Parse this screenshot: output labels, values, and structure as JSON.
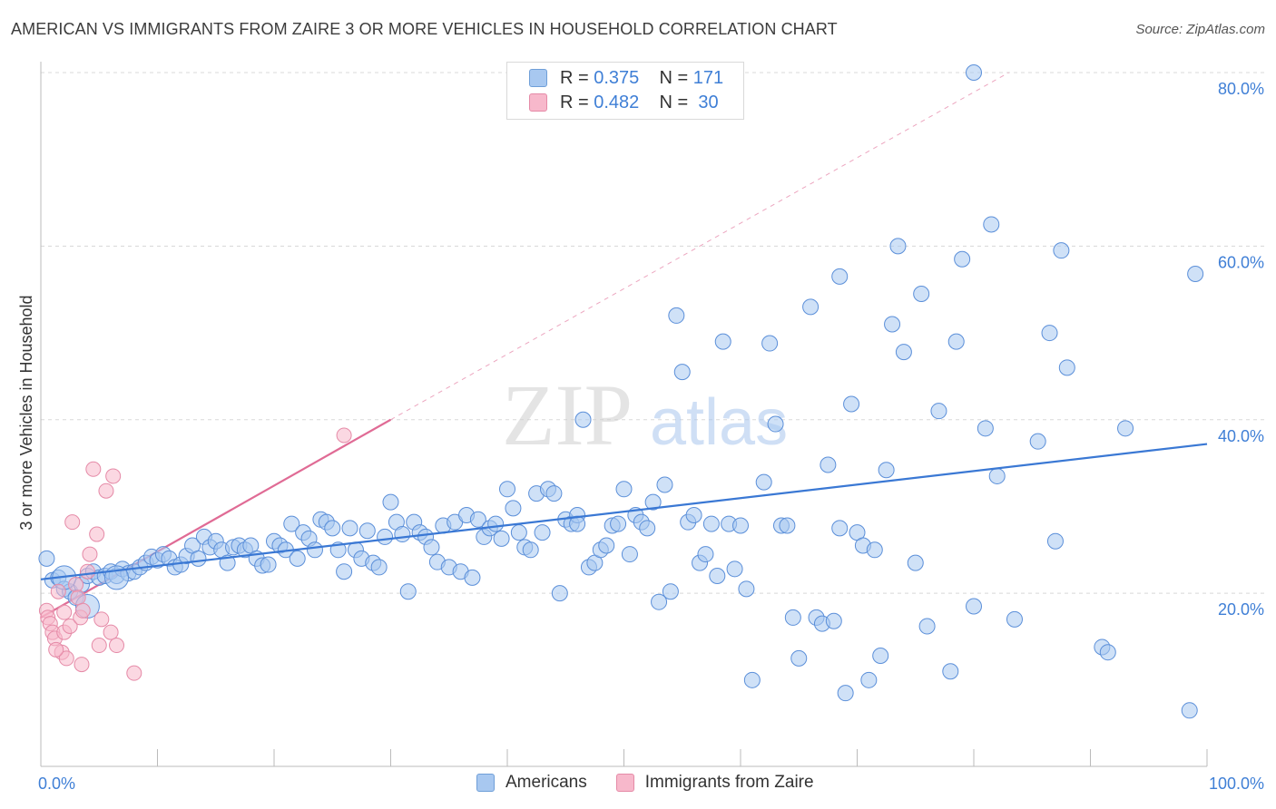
{
  "title": "AMERICAN VS IMMIGRANTS FROM ZAIRE 3 OR MORE VEHICLES IN HOUSEHOLD CORRELATION CHART",
  "source": "Source: ZipAtlas.com",
  "watermark": {
    "zip": "ZIP",
    "atlas": "atlas"
  },
  "legend": {
    "rows": [
      {
        "r_label": "R =",
        "r_value": "0.375",
        "n_label": "N =",
        "n_value": "171",
        "color": "#a8c8f0",
        "border": "#6f9fd8"
      },
      {
        "r_label": "R =",
        "r_value": "0.482",
        "n_label": "N =",
        "n_value": "30",
        "color": "#f7b8cb",
        "border": "#e58aa7"
      }
    ]
  },
  "bottom_legend": {
    "americans": "Americans",
    "zaire": "Immigrants from Zaire"
  },
  "colors": {
    "blue": "#5b8fd9",
    "blue_fill": "#a8c8f0",
    "pink": "#e06b95",
    "pink_fill": "#f7b8cb",
    "grid": "#d8d8d8",
    "axis_text": "#3f7fd6"
  },
  "chart_data": {
    "type": "scatter",
    "title": "AMERICAN VS IMMIGRANTS FROM ZAIRE 3 OR MORE VEHICLES IN HOUSEHOLD CORRELATION CHART",
    "xlabel": "",
    "ylabel": "3 or more Vehicles in Household",
    "xlim": [
      0,
      100
    ],
    "ylim": [
      0,
      82
    ],
    "x_tick_labels": [
      "0.0%",
      "100.0%"
    ],
    "y_ticks": [
      20,
      40,
      60,
      80
    ],
    "y_tick_labels": [
      "20.0%",
      "40.0%",
      "60.0%",
      "80.0%"
    ],
    "grid": true,
    "legend_position": "top-center",
    "series": [
      {
        "name": "Americans",
        "r": 0.375,
        "n": 171,
        "trend": {
          "x": [
            0,
            100
          ],
          "y": [
            21.6,
            37.2
          ]
        },
        "points": [
          [
            0.5,
            24.0
          ],
          [
            1.0,
            21.5
          ],
          [
            1.5,
            21.8
          ],
          [
            2.0,
            20.5
          ],
          [
            2.5,
            20.2
          ],
          [
            3.0,
            19.5
          ],
          [
            3.5,
            21.0
          ],
          [
            4.0,
            22.0
          ],
          [
            4.5,
            22.5
          ],
          [
            5.0,
            21.8
          ],
          [
            5.5,
            22.0
          ],
          [
            6.0,
            22.5
          ],
          [
            6.5,
            22.0
          ],
          [
            7.0,
            22.8
          ],
          [
            7.5,
            22.3
          ],
          [
            8.0,
            22.5
          ],
          [
            8.5,
            23.0
          ],
          [
            9.0,
            23.5
          ],
          [
            9.5,
            24.2
          ],
          [
            10.0,
            23.8
          ],
          [
            10.5,
            24.5
          ],
          [
            11.0,
            24.0
          ],
          [
            11.5,
            23.0
          ],
          [
            12.0,
            23.3
          ],
          [
            12.5,
            24.3
          ],
          [
            13.0,
            25.5
          ],
          [
            13.5,
            24.0
          ],
          [
            14.0,
            26.5
          ],
          [
            14.5,
            25.3
          ],
          [
            15.0,
            26.0
          ],
          [
            15.5,
            25.0
          ],
          [
            16.0,
            23.5
          ],
          [
            16.5,
            25.3
          ],
          [
            17.0,
            25.5
          ],
          [
            17.5,
            25.0
          ],
          [
            18.0,
            25.5
          ],
          [
            18.5,
            24.0
          ],
          [
            19.0,
            23.2
          ],
          [
            19.5,
            23.3
          ],
          [
            20.0,
            26.0
          ],
          [
            20.5,
            25.5
          ],
          [
            21.0,
            25.0
          ],
          [
            21.5,
            28.0
          ],
          [
            22.0,
            24.0
          ],
          [
            22.5,
            27.0
          ],
          [
            23.0,
            26.3
          ],
          [
            23.5,
            25.0
          ],
          [
            24.0,
            28.5
          ],
          [
            24.5,
            28.2
          ],
          [
            25.0,
            27.5
          ],
          [
            25.5,
            25.0
          ],
          [
            26.0,
            22.5
          ],
          [
            26.5,
            27.5
          ],
          [
            27.0,
            25.0
          ],
          [
            27.5,
            24.0
          ],
          [
            28.0,
            27.2
          ],
          [
            28.5,
            23.5
          ],
          [
            29.0,
            23.0
          ],
          [
            29.5,
            26.5
          ],
          [
            30.0,
            30.5
          ],
          [
            30.5,
            28.2
          ],
          [
            31.0,
            26.8
          ],
          [
            31.5,
            20.2
          ],
          [
            32.0,
            28.2
          ],
          [
            32.5,
            27.0
          ],
          [
            33.0,
            26.5
          ],
          [
            33.5,
            25.3
          ],
          [
            34.0,
            23.6
          ],
          [
            34.5,
            27.8
          ],
          [
            35.0,
            23.0
          ],
          [
            35.5,
            28.2
          ],
          [
            36.0,
            22.5
          ],
          [
            36.5,
            29.0
          ],
          [
            37.0,
            21.8
          ],
          [
            37.5,
            28.5
          ],
          [
            38.0,
            26.5
          ],
          [
            38.5,
            27.5
          ],
          [
            39.0,
            28.0
          ],
          [
            39.5,
            26.3
          ],
          [
            40.0,
            32.0
          ],
          [
            40.5,
            29.8
          ],
          [
            41.0,
            27.0
          ],
          [
            41.5,
            25.3
          ],
          [
            42.0,
            25.0
          ],
          [
            42.5,
            31.5
          ],
          [
            43.0,
            27.0
          ],
          [
            43.5,
            32.0
          ],
          [
            44.0,
            31.5
          ],
          [
            44.5,
            20.0
          ],
          [
            45.0,
            28.5
          ],
          [
            45.5,
            28.0
          ],
          [
            46.0,
            29.0
          ],
          [
            46.5,
            40.0
          ],
          [
            47.0,
            23.0
          ],
          [
            47.5,
            23.5
          ],
          [
            48.0,
            25.0
          ],
          [
            48.5,
            25.5
          ],
          [
            49.0,
            27.8
          ],
          [
            49.5,
            28.0
          ],
          [
            50.0,
            32.0
          ],
          [
            50.5,
            24.5
          ],
          [
            51.0,
            29.0
          ],
          [
            51.5,
            28.2
          ],
          [
            52.0,
            27.5
          ],
          [
            52.5,
            30.5
          ],
          [
            53.0,
            19.0
          ],
          [
            53.5,
            32.5
          ],
          [
            54.0,
            20.2
          ],
          [
            54.5,
            52.0
          ],
          [
            55.0,
            45.5
          ],
          [
            55.5,
            28.2
          ],
          [
            56.0,
            29.0
          ],
          [
            56.5,
            23.5
          ],
          [
            57.0,
            24.5
          ],
          [
            57.5,
            28.0
          ],
          [
            58.0,
            22.0
          ],
          [
            58.5,
            49.0
          ],
          [
            59.0,
            28.0
          ],
          [
            59.5,
            22.8
          ],
          [
            60.0,
            27.8
          ],
          [
            60.5,
            20.5
          ],
          [
            61.0,
            10.0
          ],
          [
            62.0,
            32.8
          ],
          [
            62.5,
            48.8
          ],
          [
            63.0,
            39.5
          ],
          [
            63.5,
            27.8
          ],
          [
            64.0,
            27.8
          ],
          [
            64.5,
            17.2
          ],
          [
            65.0,
            12.5
          ],
          [
            66.0,
            53.0
          ],
          [
            66.5,
            17.2
          ],
          [
            67.0,
            16.5
          ],
          [
            67.5,
            34.8
          ],
          [
            68.0,
            16.8
          ],
          [
            68.5,
            56.5
          ],
          [
            69.0,
            8.5
          ],
          [
            69.5,
            41.8
          ],
          [
            70.0,
            27.0
          ],
          [
            70.5,
            25.5
          ],
          [
            71.0,
            10.0
          ],
          [
            71.5,
            25.0
          ],
          [
            72.0,
            12.8
          ],
          [
            72.5,
            34.2
          ],
          [
            73.0,
            51.0
          ],
          [
            73.5,
            60.0
          ],
          [
            74.0,
            47.8
          ],
          [
            75.0,
            23.5
          ],
          [
            75.5,
            54.5
          ],
          [
            76.0,
            16.2
          ],
          [
            77.0,
            41.0
          ],
          [
            78.0,
            11.0
          ],
          [
            78.5,
            49.0
          ],
          [
            79.0,
            58.5
          ],
          [
            80.0,
            18.5
          ],
          [
            81.0,
            39.0
          ],
          [
            81.5,
            62.5
          ],
          [
            82.0,
            33.5
          ],
          [
            83.5,
            17.0
          ],
          [
            85.5,
            37.5
          ],
          [
            86.5,
            50.0
          ],
          [
            87.0,
            26.0
          ],
          [
            87.5,
            59.5
          ],
          [
            88.0,
            46.0
          ],
          [
            91.0,
            13.8
          ],
          [
            91.5,
            13.2
          ],
          [
            93.0,
            39.0
          ],
          [
            98.5,
            6.5
          ],
          [
            99.0,
            56.8
          ],
          [
            80.0,
            80.0
          ],
          [
            68.5,
            27.5
          ],
          [
            46.0,
            28.0
          ]
        ],
        "big_points": [
          [
            4.0,
            18.5
          ],
          [
            2.0,
            21.8
          ],
          [
            6.5,
            21.8
          ]
        ]
      },
      {
        "name": "Immigrants from Zaire",
        "r": 0.482,
        "n": 30,
        "trend": {
          "x": [
            0,
            30
          ],
          "y": [
            17.2,
            40.0
          ]
        },
        "trend_dashed_to": {
          "x": 83,
          "y": 80.0
        },
        "points": [
          [
            0.5,
            18.0
          ],
          [
            0.6,
            17.2
          ],
          [
            0.8,
            16.5
          ],
          [
            1.0,
            15.5
          ],
          [
            1.2,
            14.8
          ],
          [
            1.5,
            20.2
          ],
          [
            1.8,
            13.2
          ],
          [
            2.0,
            15.5
          ],
          [
            2.2,
            12.5
          ],
          [
            2.5,
            16.2
          ],
          [
            2.7,
            28.2
          ],
          [
            3.0,
            21.0
          ],
          [
            3.2,
            19.5
          ],
          [
            3.4,
            17.2
          ],
          [
            3.5,
            11.8
          ],
          [
            3.6,
            18.0
          ],
          [
            4.0,
            22.5
          ],
          [
            4.2,
            24.5
          ],
          [
            4.5,
            34.3
          ],
          [
            4.8,
            26.8
          ],
          [
            5.0,
            14.0
          ],
          [
            5.2,
            17.0
          ],
          [
            5.6,
            31.8
          ],
          [
            6.0,
            15.5
          ],
          [
            6.2,
            33.5
          ],
          [
            6.5,
            14.0
          ],
          [
            8.0,
            10.8
          ],
          [
            26.0,
            38.2
          ],
          [
            2.0,
            17.8
          ],
          [
            1.3,
            13.5
          ]
        ]
      }
    ]
  }
}
